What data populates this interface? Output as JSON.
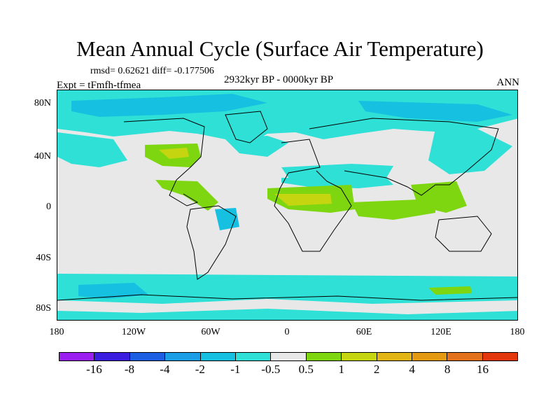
{
  "title": "Mean Annual Cycle (Surface Air Temperature)",
  "stats": "rmsd= 0.62621 diff= -0.177506",
  "experiment": "Expt = tFmfh-tfmea",
  "period": "2932kyr BP - 0000kyr BP",
  "season": "ANN",
  "y_axis_labels": [
    "80N",
    "40N",
    "0",
    "40S",
    "80S"
  ],
  "x_axis_labels": [
    "180",
    "120W",
    "60W",
    "0",
    "60E",
    "120E",
    "180"
  ],
  "colorbar": {
    "colors": [
      "#9b1ff0",
      "#3b1de0",
      "#1d5fe3",
      "#1c9ee6",
      "#16c0e0",
      "#2ee0d6",
      "#e8e8e8",
      "#7ed610",
      "#c5d611",
      "#e3b514",
      "#e39a12",
      "#e3701a",
      "#e3380e"
    ],
    "labels": [
      "-16",
      "-8",
      "-4",
      "-2",
      "-1",
      "-0.5",
      "0.5",
      "1",
      "2",
      "4",
      "8",
      "16"
    ]
  }
}
